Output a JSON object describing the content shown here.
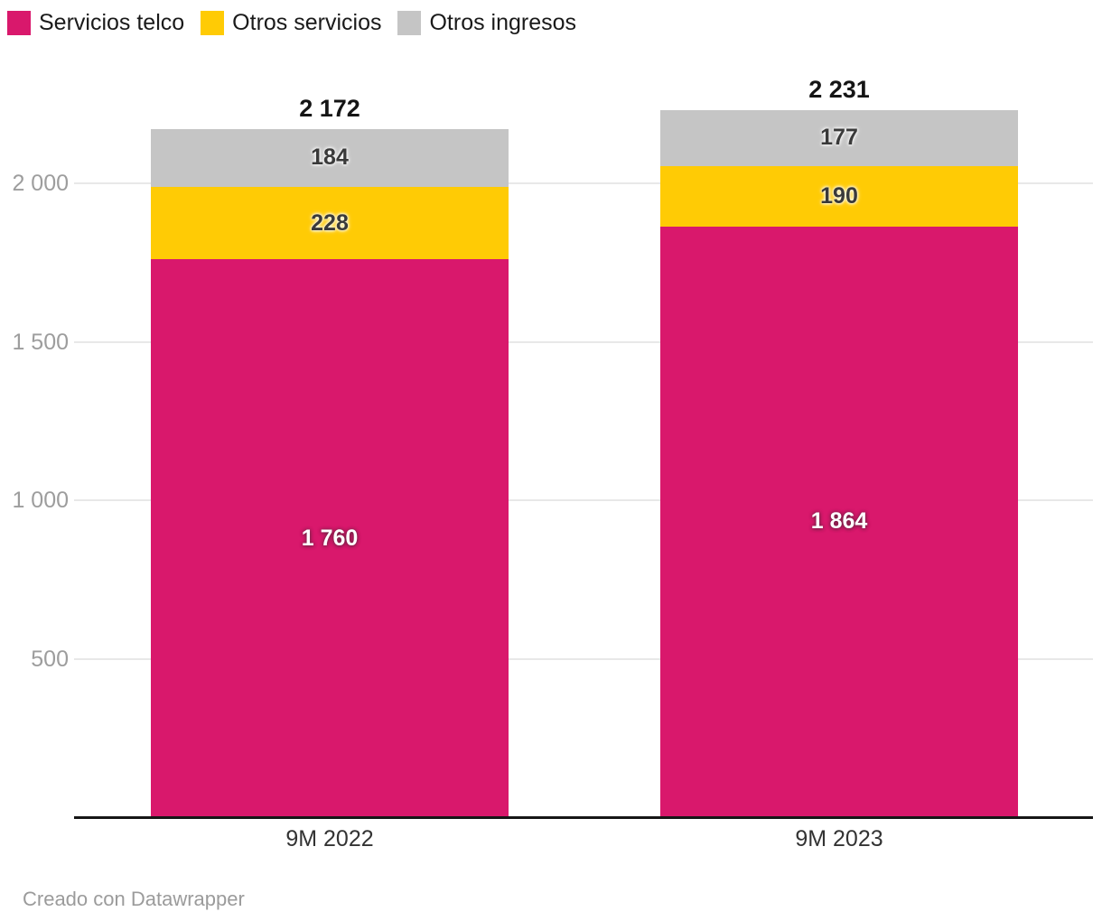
{
  "legend": {
    "items": [
      {
        "label": "Servicios telco",
        "color": "#d9186c"
      },
      {
        "label": "Otros servicios",
        "color": "#ffcb05"
      },
      {
        "label": "Otros ingresos",
        "color": "#c5c5c5"
      }
    ]
  },
  "chart_data": {
    "type": "bar",
    "stacked": true,
    "orientation": "vertical",
    "categories": [
      "9M 2022",
      "9M 2023"
    ],
    "series": [
      {
        "name": "Servicios telco",
        "color": "#d9186c",
        "values": [
          1760,
          1864
        ],
        "labels": [
          "1 760",
          "1 864"
        ],
        "label_style": "light"
      },
      {
        "name": "Otros servicios",
        "color": "#ffcb05",
        "values": [
          228,
          190
        ],
        "labels": [
          "228",
          "190"
        ],
        "label_style": "dark"
      },
      {
        "name": "Otros ingresos",
        "color": "#c5c5c5",
        "values": [
          184,
          177
        ],
        "labels": [
          "184",
          "177"
        ],
        "label_style": "dark"
      }
    ],
    "totals": [
      2172,
      2231
    ],
    "total_labels": [
      "2 172",
      "2 231"
    ],
    "y_ticks": [
      {
        "value": 500,
        "label": "500"
      },
      {
        "value": 1000,
        "label": "1 000"
      },
      {
        "value": 1500,
        "label": "1 500"
      },
      {
        "value": 2000,
        "label": "2 000"
      }
    ],
    "ylim": [
      0,
      2231
    ],
    "grid": "horizontal",
    "legend_position": "top-left"
  },
  "footer": {
    "credit": "Creado con Datawrapper"
  }
}
